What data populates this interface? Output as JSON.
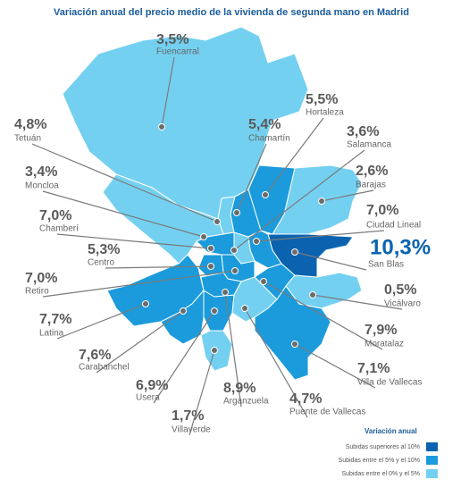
{
  "title": "Variación anual del precio medio de la vivienda de segunda mano en Madrid",
  "districts": [
    {
      "name": "Fuencarral",
      "value": "3,5%",
      "category": 2
    },
    {
      "name": "Tetuán",
      "value": "4,8%",
      "category": 2
    },
    {
      "name": "Moncloa",
      "value": "3,4%",
      "category": 2
    },
    {
      "name": "Chamberí",
      "value": "7,0%",
      "category": 1
    },
    {
      "name": "Centro",
      "value": "5,3%",
      "category": 1
    },
    {
      "name": "Retiro",
      "value": "7,0%",
      "category": 1
    },
    {
      "name": "Latina",
      "value": "7,7%",
      "category": 1
    },
    {
      "name": "Carabanchel",
      "value": "7,6%",
      "category": 1
    },
    {
      "name": "Usera",
      "value": "6,9%",
      "category": 1
    },
    {
      "name": "Villaverde",
      "value": "1,7%",
      "category": 2
    },
    {
      "name": "Arganzuela",
      "value": "8,9%",
      "category": 1
    },
    {
      "name": "Puente de Vallecas",
      "value": "4,7%",
      "category": 2
    },
    {
      "name": "Villa de Vallecas",
      "value": "7,1%",
      "category": 1
    },
    {
      "name": "Moratalaz",
      "value": "7,9%",
      "category": 1
    },
    {
      "name": "Vicálvaro",
      "value": "0,5%",
      "category": 2
    },
    {
      "name": "San Blas",
      "value": "10,3%",
      "category": 0
    },
    {
      "name": "Ciudad Lineal",
      "value": "7,0%",
      "category": 1
    },
    {
      "name": "Barajas",
      "value": "2,6%",
      "category": 2
    },
    {
      "name": "Salamanca",
      "value": "3,6%",
      "category": 2
    },
    {
      "name": "Hortaleza",
      "value": "5,5%",
      "category": 1
    },
    {
      "name": "Chamartín",
      "value": "5,4%",
      "category": 1
    }
  ],
  "legend": {
    "title": "Variación anual",
    "items": [
      {
        "label": "Subidas superiores al 10%",
        "color": "#0b63b0"
      },
      {
        "label": "Subidas entre el 5% y el 10%",
        "color": "#1b9bdc"
      },
      {
        "label": "Subidas entre el 0% y el 5%",
        "color": "#74d0f0"
      }
    ]
  }
}
